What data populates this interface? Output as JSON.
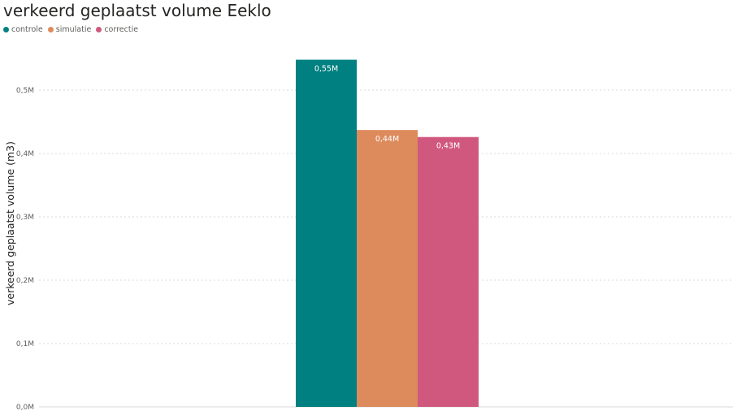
{
  "colors": {
    "controle": "#008080",
    "simulatie": "#DD8A5C",
    "correctie": "#D0587E",
    "gridline": "#d9d9d9",
    "tick_text": "#605e5c",
    "label_text": "#ffffff"
  },
  "chart_data": {
    "type": "bar",
    "title": "verkeerd geplaatst volume Eeklo",
    "xlabel": "",
    "ylabel": "verkeerd geplaatst volume (m3)",
    "ylim": [
      0,
      550000
    ],
    "yticks": [
      0,
      100000,
      200000,
      300000,
      400000,
      500000
    ],
    "ytick_labels": [
      "0,0M",
      "0,1M",
      "0,2M",
      "0,3M",
      "0,4M",
      "0,5M"
    ],
    "grid": true,
    "legend_position": "top-left",
    "categories": [
      ""
    ],
    "series": [
      {
        "name": "controle",
        "values": [
          548000
        ],
        "label": "0,55M",
        "color_key": "controle"
      },
      {
        "name": "simulatie",
        "values": [
          437000
        ],
        "label": "0,44M",
        "color_key": "simulatie"
      },
      {
        "name": "correctie",
        "values": [
          426000
        ],
        "label": "0,43M",
        "color_key": "correctie"
      }
    ]
  }
}
